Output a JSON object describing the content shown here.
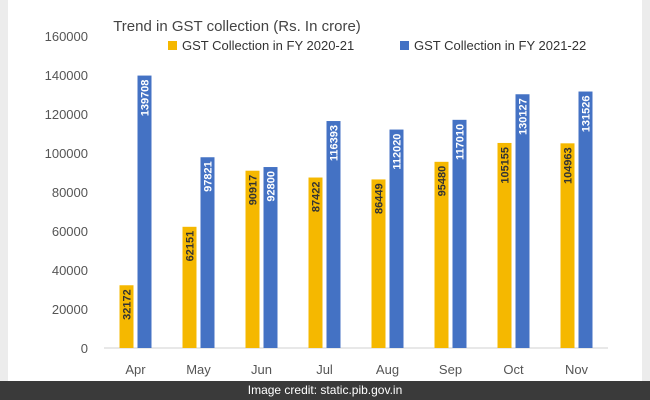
{
  "chart_data": {
    "type": "bar",
    "title": "Trend in GST collection (Rs. In crore)",
    "categories": [
      "Apr",
      "May",
      "Jun",
      "Jul",
      "Aug",
      "Sep",
      "Oct",
      "Nov"
    ],
    "series": [
      {
        "name": "GST Collection in FY 2020-21",
        "color": "#f5b800",
        "values": [
          32172,
          62151,
          90917,
          87422,
          86449,
          95480,
          105155,
          104963
        ]
      },
      {
        "name": "GST Collection in FY 2021-22",
        "color": "#4472c4",
        "values": [
          139708,
          97821,
          92800,
          116393,
          112020,
          117010,
          130127,
          131526
        ]
      }
    ],
    "ylim": [
      0,
      160000
    ],
    "yticks": [
      "0",
      "20000",
      "40000",
      "60000",
      "80000",
      "100000",
      "120000",
      "140000",
      "160000"
    ],
    "legend": "top-right",
    "grid": false
  },
  "credit": "Image credit: static.pib.gov.in"
}
